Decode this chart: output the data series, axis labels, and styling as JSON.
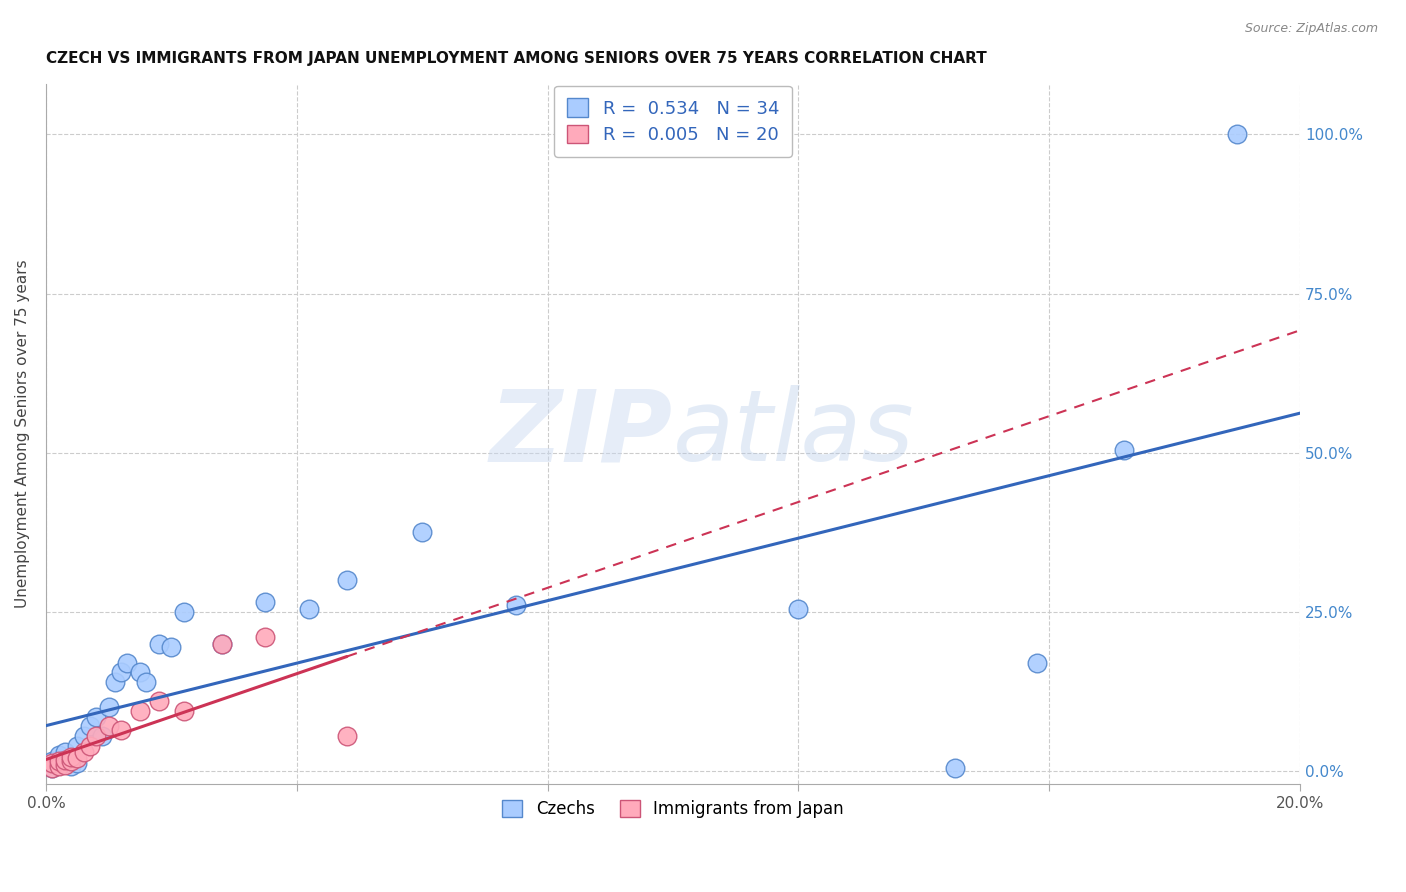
{
  "title": "CZECH VS IMMIGRANTS FROM JAPAN UNEMPLOYMENT AMONG SENIORS OVER 75 YEARS CORRELATION CHART",
  "source": "Source: ZipAtlas.com",
  "ylabel": "Unemployment Among Seniors over 75 years",
  "xlim": [
    0.0,
    0.2
  ],
  "ylim": [
    -0.02,
    1.08
  ],
  "ytick_vals": [
    0.0,
    0.25,
    0.5,
    0.75,
    1.0
  ],
  "ytick_labels": [
    "0.0%",
    "25.0%",
    "50.0%",
    "75.0%",
    "100.0%"
  ],
  "xtick_vals": [
    0.0,
    0.04,
    0.08,
    0.12,
    0.16,
    0.2
  ],
  "xtick_labels": [
    "0.0%",
    "",
    "",
    "",
    "",
    "20.0%"
  ],
  "czechs_x": [
    0.001,
    0.001,
    0.002,
    0.002,
    0.003,
    0.003,
    0.004,
    0.004,
    0.005,
    0.005,
    0.006,
    0.007,
    0.008,
    0.009,
    0.01,
    0.011,
    0.012,
    0.013,
    0.015,
    0.016,
    0.018,
    0.02,
    0.022,
    0.028,
    0.035,
    0.042,
    0.048,
    0.06,
    0.075,
    0.12,
    0.145,
    0.158,
    0.172,
    0.19
  ],
  "czechs_y": [
    0.005,
    0.015,
    0.01,
    0.025,
    0.015,
    0.03,
    0.008,
    0.02,
    0.012,
    0.04,
    0.055,
    0.07,
    0.085,
    0.055,
    0.1,
    0.14,
    0.155,
    0.17,
    0.155,
    0.14,
    0.2,
    0.195,
    0.25,
    0.2,
    0.265,
    0.255,
    0.3,
    0.375,
    0.26,
    0.255,
    0.005,
    0.17,
    0.505,
    1.0
  ],
  "japan_x": [
    0.001,
    0.001,
    0.002,
    0.002,
    0.003,
    0.003,
    0.004,
    0.004,
    0.005,
    0.006,
    0.007,
    0.008,
    0.01,
    0.012,
    0.015,
    0.018,
    0.022,
    0.028,
    0.035,
    0.048
  ],
  "japan_y": [
    0.005,
    0.012,
    0.008,
    0.015,
    0.01,
    0.018,
    0.015,
    0.022,
    0.02,
    0.03,
    0.04,
    0.055,
    0.07,
    0.065,
    0.095,
    0.11,
    0.095,
    0.2,
    0.21,
    0.055
  ],
  "czech_color": "#aaccff",
  "czech_edge_color": "#5588cc",
  "japan_color": "#ffaabb",
  "japan_edge_color": "#cc5577",
  "trend_czech_color": "#3366bb",
  "trend_japan_color": "#cc3355",
  "R_czech": "0.534",
  "N_czech": "34",
  "R_japan": "0.005",
  "N_japan": "20",
  "watermark_zip": "ZIP",
  "watermark_atlas": "atlas",
  "background_color": "#ffffff",
  "grid_color": "#cccccc"
}
